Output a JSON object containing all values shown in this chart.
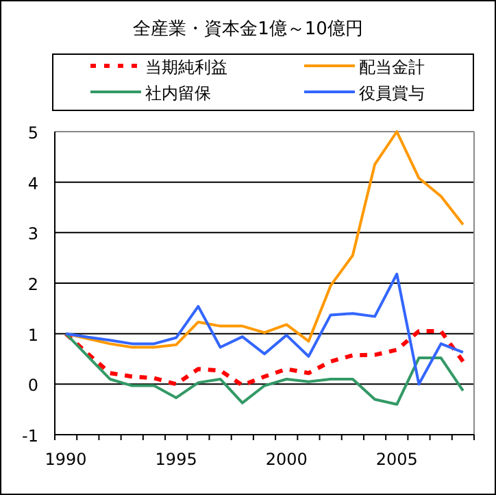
{
  "chart_data": {
    "type": "line",
    "title": "全産業・資本金1億～10億円",
    "categories": [
      "1990",
      null,
      null,
      null,
      null,
      "1995",
      null,
      null,
      null,
      null,
      "2000",
      null,
      null,
      null,
      null,
      "2005",
      null,
      null,
      null
    ],
    "series": [
      {
        "name": "当期純利益",
        "color": "#ff0000",
        "line_style": "dashed",
        "values": [
          1.0,
          0.6,
          0.22,
          0.15,
          0.12,
          0.0,
          0.3,
          0.27,
          -0.02,
          0.15,
          0.3,
          0.22,
          0.45,
          0.57,
          0.58,
          0.68,
          1.05,
          1.05,
          0.45
        ]
      },
      {
        "name": "配当金計",
        "color": "#ff9900",
        "values": [
          1.0,
          0.9,
          0.8,
          0.73,
          0.73,
          0.78,
          1.23,
          1.15,
          1.15,
          1.02,
          1.18,
          0.85,
          1.95,
          2.55,
          4.35,
          5.0,
          4.08,
          3.72,
          3.16
        ]
      },
      {
        "name": "社内留保",
        "color": "#339966",
        "values": [
          1.0,
          0.55,
          0.1,
          -0.03,
          -0.03,
          -0.27,
          0.03,
          0.1,
          -0.37,
          -0.03,
          0.1,
          0.05,
          0.1,
          0.1,
          -0.3,
          -0.4,
          0.52,
          0.52,
          -0.13
        ]
      },
      {
        "name": "役員賞与",
        "color": "#3366ff",
        "values": [
          1.0,
          0.93,
          0.87,
          0.8,
          0.8,
          0.92,
          1.54,
          0.73,
          0.94,
          0.6,
          0.97,
          0.55,
          1.37,
          1.4,
          1.34,
          2.18,
          0.0,
          0.8,
          0.63
        ]
      }
    ],
    "ylim": [
      -1,
      5
    ],
    "yticks": [
      -1,
      0,
      1,
      2,
      3,
      4,
      5
    ],
    "grid": "y",
    "legend": "top",
    "marker": "none",
    "line_style": "solid"
  }
}
